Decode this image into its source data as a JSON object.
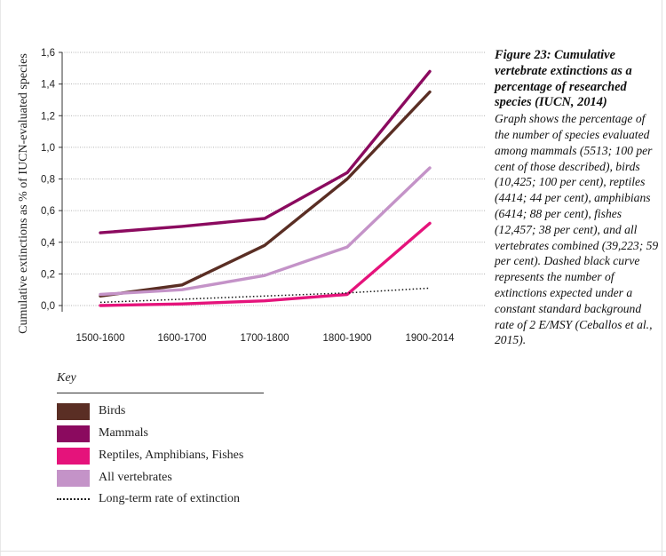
{
  "chart_data": {
    "type": "line",
    "ylabel": "Cumulative extinctions as % of IUCN-evaluated species",
    "xlabel": "",
    "categories": [
      "1500-1600",
      "1600-1700",
      "1700-1800",
      "1800-1900",
      "1900-2014"
    ],
    "yticks": [
      "0,0",
      "0,2",
      "0,4",
      "0,6",
      "0,8",
      "1,0",
      "1,2",
      "1,4",
      "1,6"
    ],
    "ylim": [
      0,
      1.6
    ],
    "grid": true,
    "legend_position": "bottom-left",
    "series": [
      {
        "name": "Birds",
        "color": "#5a2e24",
        "style": "solid",
        "values": [
          0.06,
          0.13,
          0.38,
          0.8,
          1.35
        ]
      },
      {
        "name": "Mammals",
        "color": "#8b0a5f",
        "style": "solid",
        "values": [
          0.46,
          0.5,
          0.55,
          0.84,
          1.48
        ]
      },
      {
        "name": "Reptiles, Amphibians, Fishes",
        "color": "#e5137b",
        "style": "solid",
        "values": [
          0.0,
          0.01,
          0.03,
          0.07,
          0.52
        ]
      },
      {
        "name": "All vertebrates",
        "color": "#c493c8",
        "style": "solid",
        "values": [
          0.07,
          0.1,
          0.19,
          0.37,
          0.87
        ]
      },
      {
        "name": "Long-term rate of extinction",
        "color": "#111111",
        "style": "dotted",
        "values": [
          0.02,
          0.04,
          0.06,
          0.08,
          0.11
        ]
      }
    ]
  },
  "key": {
    "title": "Key"
  },
  "caption": {
    "title": "Figure 23: Cumulative vertebrate extinctions as a percentage of researched species (IUCN, 2014)",
    "body": "Graph shows the percentage of the number of species evaluated among mammals (5513; 100 per cent of those described), birds (10,425; 100 per cent), reptiles (4414; 44 per cent), amphibians (6414; 88 per cent), fishes (12,457; 38 per cent), and all vertebrates combined (39,223; 59 per cent). Dashed black curve represents the number of extinctions expected under a constant standard background rate of 2 E/MSY (Ceballos et al., 2015)."
  }
}
